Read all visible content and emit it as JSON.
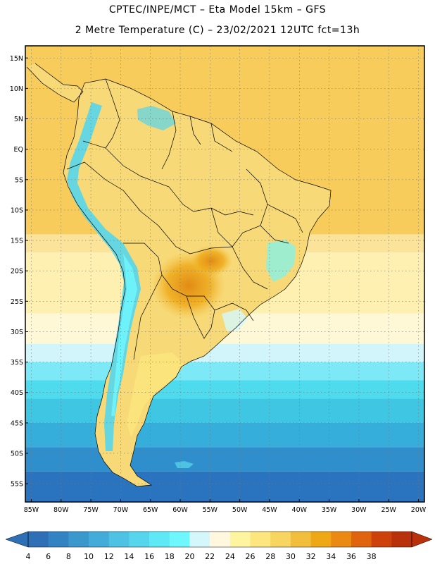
{
  "header": {
    "line1": "CPTEC/INPE/MCT –  Eta Model 15km – GFS",
    "line2": "2 Metre Temperature (C) – 23/02/2021 12UTC fct=13h"
  },
  "map": {
    "lon_range": [
      -86,
      -19
    ],
    "lat_range": [
      -58,
      17
    ],
    "x_ticks": [
      {
        "value": -85,
        "label": "85W"
      },
      {
        "value": -80,
        "label": "80W"
      },
      {
        "value": -75,
        "label": "75W"
      },
      {
        "value": -70,
        "label": "70W"
      },
      {
        "value": -65,
        "label": "65W"
      },
      {
        "value": -60,
        "label": "60W"
      },
      {
        "value": -55,
        "label": "55W"
      },
      {
        "value": -50,
        "label": "50W"
      },
      {
        "value": -45,
        "label": "45W"
      },
      {
        "value": -40,
        "label": "40W"
      },
      {
        "value": -35,
        "label": "35W"
      },
      {
        "value": -30,
        "label": "30W"
      },
      {
        "value": -25,
        "label": "25W"
      },
      {
        "value": -20,
        "label": "20W"
      }
    ],
    "y_ticks": [
      {
        "value": 15,
        "label": "15N"
      },
      {
        "value": 10,
        "label": "10N"
      },
      {
        "value": 5,
        "label": "5N"
      },
      {
        "value": 0,
        "label": "EQ"
      },
      {
        "value": -5,
        "label": "5S"
      },
      {
        "value": -10,
        "label": "10S"
      },
      {
        "value": -15,
        "label": "15S"
      },
      {
        "value": -20,
        "label": "20S"
      },
      {
        "value": -25,
        "label": "25S"
      },
      {
        "value": -30,
        "label": "30S"
      },
      {
        "value": -35,
        "label": "35S"
      },
      {
        "value": -40,
        "label": "40S"
      },
      {
        "value": -45,
        "label": "45S"
      },
      {
        "value": -50,
        "label": "50S"
      },
      {
        "value": -55,
        "label": "55S"
      }
    ],
    "grid": "dotted",
    "ocean_bands": [
      {
        "lat_from": 17,
        "lat_to": -14,
        "color": "#f7cc5a"
      },
      {
        "lat_from": -14,
        "lat_to": -17,
        "color": "#fbe39a"
      },
      {
        "lat_from": -17,
        "lat_to": -27,
        "color": "#fdf0b0"
      },
      {
        "lat_from": -27,
        "lat_to": -32,
        "color": "#fff8d6"
      },
      {
        "lat_from": -32,
        "lat_to": -35,
        "color": "#d2f5fb"
      },
      {
        "lat_from": -35,
        "lat_to": -38,
        "color": "#7ee9f6"
      },
      {
        "lat_from": -38,
        "lat_to": -41,
        "color": "#4fdbee"
      },
      {
        "lat_from": -41,
        "lat_to": -45,
        "color": "#3ec6e2"
      },
      {
        "lat_from": -45,
        "lat_to": -49,
        "color": "#36aedb"
      },
      {
        "lat_from": -49,
        "lat_to": -53,
        "color": "#2f8fcd"
      },
      {
        "lat_from": -53,
        "lat_to": -58,
        "color": "#2a73be"
      }
    ]
  },
  "colorbar": {
    "levels": [
      "4",
      "6",
      "8",
      "10",
      "12",
      "14",
      "16",
      "18",
      "20",
      "22",
      "24",
      "26",
      "28",
      "30",
      "32",
      "34",
      "36",
      "38"
    ],
    "colors": [
      "#2f6fb6",
      "#3383c2",
      "#3a98cd",
      "#44acd8",
      "#4dc2e2",
      "#55d6ec",
      "#5fe8f6",
      "#6ef7fd",
      "#d4f7fc",
      "#fff8df",
      "#fff5a0",
      "#fde67e",
      "#f8d460",
      "#f2bf3c",
      "#eea816",
      "#ea8a12",
      "#e0640e",
      "#cc420a",
      "#b8310a"
    ]
  }
}
